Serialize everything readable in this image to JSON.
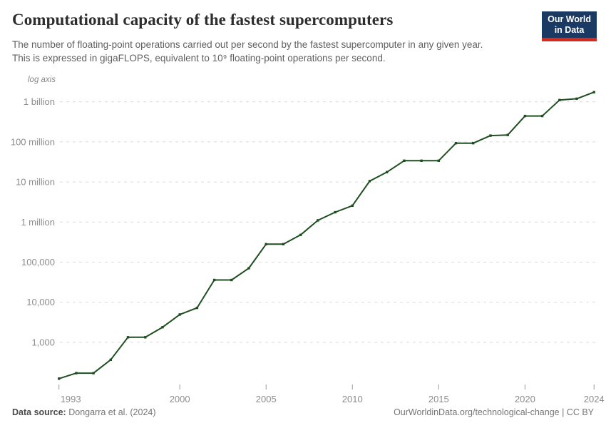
{
  "header": {
    "title": "Computational capacity of the fastest supercomputers",
    "subtitle_line1": "The number of floating-point operations carried out per second by the fastest supercomputer in any given year.",
    "subtitle_line2": "This is expressed in gigaFLOPS, equivalent to 10⁹ floating-point operations per second."
  },
  "logo": {
    "line1": "Our World",
    "line2": "in Data",
    "bg_color": "#1b3a63",
    "accent_color": "#d42b21"
  },
  "chart_data": {
    "type": "line",
    "title": "Computational capacity of the fastest supercomputers",
    "unit": "gigaFLOPS",
    "y_scale": "log",
    "axis_note": "log axis",
    "x": [
      1993,
      1994,
      1995,
      1996,
      1997,
      1998,
      1999,
      2000,
      2001,
      2002,
      2003,
      2004,
      2005,
      2006,
      2007,
      2008,
      2009,
      2010,
      2011,
      2012,
      2013,
      2014,
      2015,
      2016,
      2017,
      2018,
      2019,
      2020,
      2021,
      2022,
      2023,
      2024
    ],
    "values": [
      124,
      170,
      170,
      368,
      1338,
      1338,
      2379,
      4938,
      7226,
      35860,
      35860,
      70720,
      280600,
      280600,
      478200,
      1105000,
      1759000,
      2566000,
      10510000,
      17590000,
      33862700,
      33862700,
      33862700,
      93014600,
      93014600,
      143500000,
      148600000,
      442010000,
      442010000,
      1102000000,
      1194000000,
      1742000000
    ],
    "x_ticks": [
      1993,
      2000,
      2005,
      2010,
      2015,
      2020,
      2024
    ],
    "y_ticks": [
      {
        "value": 1000000000,
        "label": "1 billion"
      },
      {
        "value": 100000000,
        "label": "100 million"
      },
      {
        "value": 10000000,
        "label": "10 million"
      },
      {
        "value": 1000000,
        "label": "1 million"
      },
      {
        "value": 100000,
        "label": "100,000"
      },
      {
        "value": 10000,
        "label": "10,000"
      },
      {
        "value": 1000,
        "label": "1,000"
      }
    ],
    "ylim": [
      100,
      2000000000
    ],
    "grid": true,
    "legend": "none",
    "line_color": "#1f4e20",
    "grid_color": "#dadada",
    "tick_color": "#9a9a9a",
    "label_color": "#8c8c8c"
  },
  "footer": {
    "source_label": "Data source:",
    "source_value": "Dongarra et al. (2024)",
    "link_text": "OurWorldinData.org/technological-change | CC BY"
  }
}
